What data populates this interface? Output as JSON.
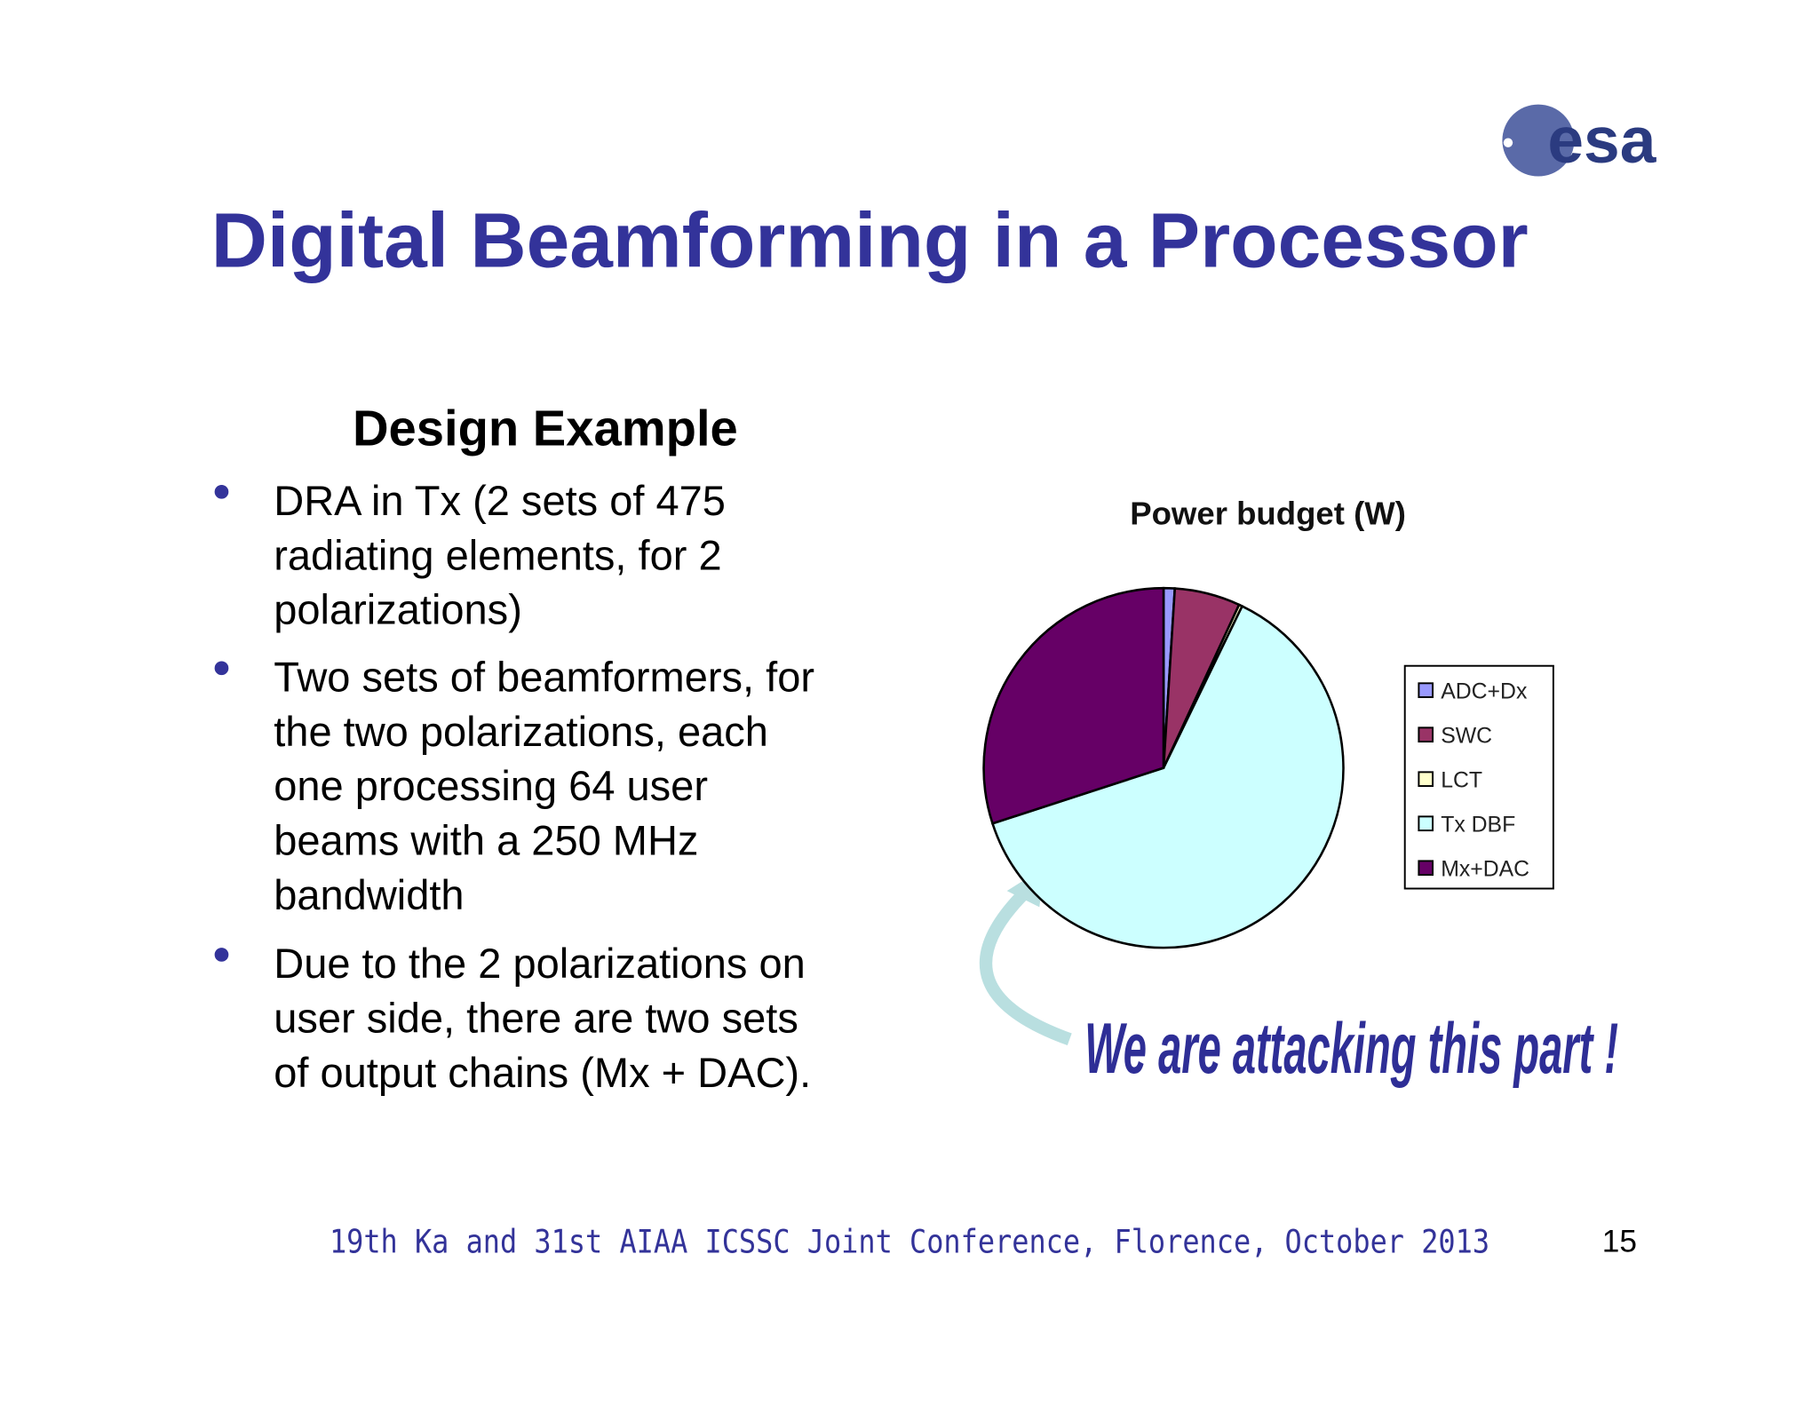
{
  "header": {
    "logo": "esa",
    "title": "Digital Beamforming in a Processor"
  },
  "body": {
    "heading": "Design Example",
    "bullets": [
      [
        "DRA in Tx (2 sets of 475",
        "radiating elements, for 2",
        "polarizations)"
      ],
      [
        "Two sets of beamformers, for",
        "the two polarizations, each",
        "one processing 64 user",
        "beams with a 250 MHz",
        "bandwidth"
      ],
      [
        "Due to the 2 polarizations on",
        "user side, there are two sets",
        "of output chains (Mx + DAC)."
      ]
    ]
  },
  "chart_data": {
    "type": "pie",
    "title": "Power budget (W)",
    "categories": [
      "ADC+Dx",
      "SWC",
      "LCT",
      "Tx DBF",
      "Mx+DAC"
    ],
    "values": [
      1,
      5.9,
      0.3,
      62.8,
      30
    ],
    "colors": [
      "#9999ff",
      "#993366",
      "#ffffcc",
      "#ccffff",
      "#660066"
    ],
    "legend": "right",
    "annotation": "We are attacking this part !"
  },
  "footer": {
    "conference": "19th Ka and 31st AIAA ICSSC Joint Conference, Florence, October 2013",
    "page": "15"
  }
}
